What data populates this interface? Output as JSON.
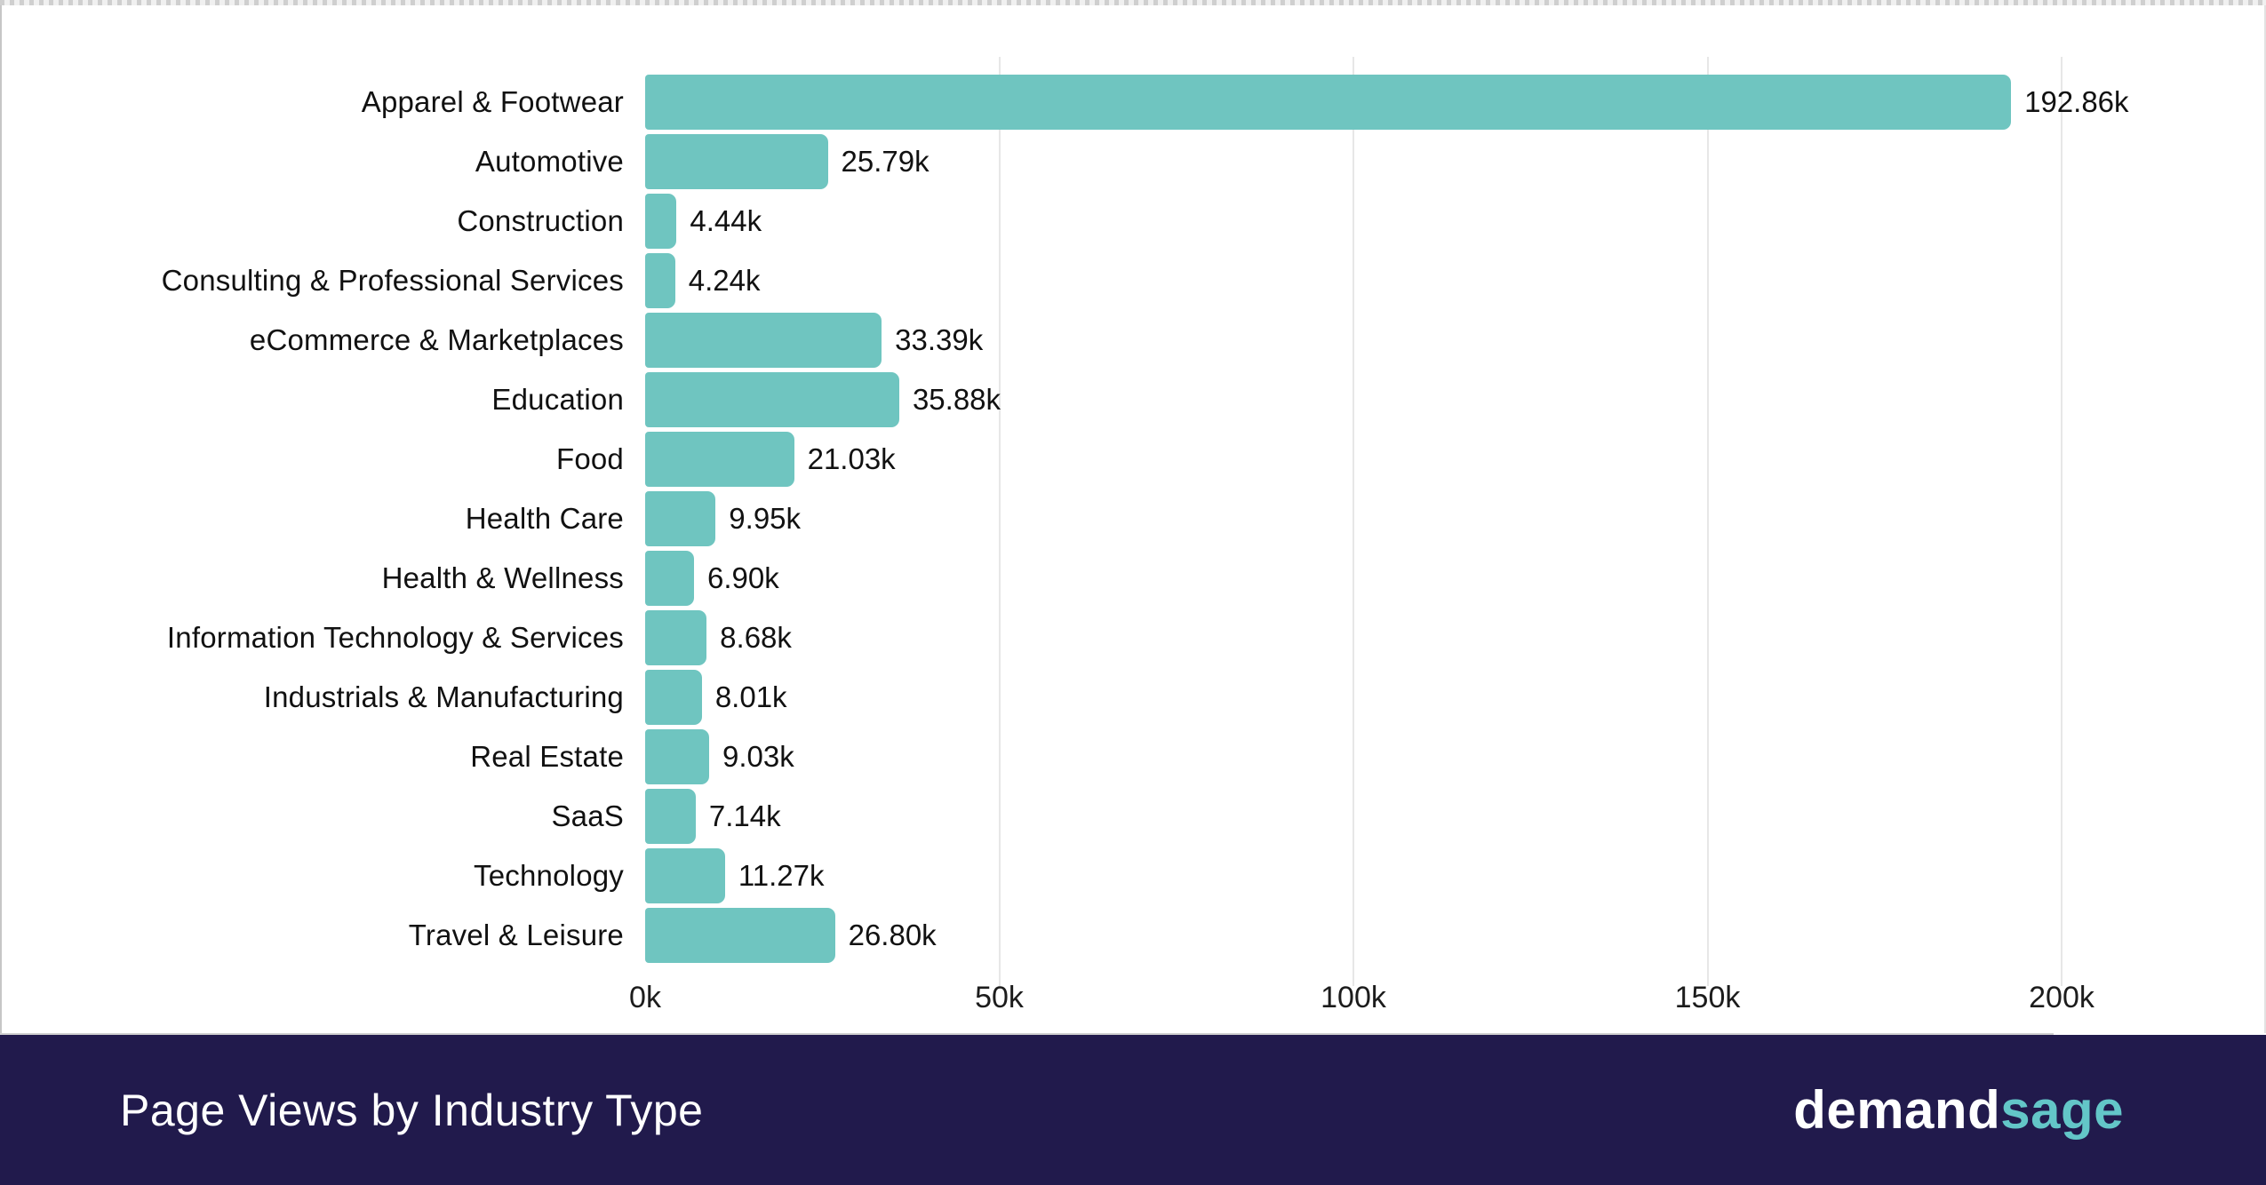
{
  "chart_data": {
    "type": "bar",
    "orientation": "horizontal",
    "title": "Page Views by Industry Type",
    "xlabel": "",
    "ylabel": "",
    "xlim": [
      0,
      200
    ],
    "grid": true,
    "unit": "thousands of page views",
    "categories": [
      "Apparel & Footwear",
      "Automotive",
      "Construction",
      "Consulting & Professional Services",
      "eCommerce & Marketplaces",
      "Education",
      "Food",
      "Health Care",
      "Health & Wellness",
      "Information Technology & Services",
      "Industrials & Manufacturing",
      "Real Estate",
      "SaaS",
      "Technology",
      "Travel & Leisure"
    ],
    "values": [
      192.86,
      25.79,
      4.44,
      4.24,
      33.39,
      35.88,
      21.03,
      9.95,
      6.9,
      8.68,
      8.01,
      9.03,
      7.14,
      11.27,
      26.8
    ],
    "value_labels": [
      "192.86k",
      "25.79k",
      "4.44k",
      "4.24k",
      "33.39k",
      "35.88k",
      "21.03k",
      "9.95k",
      "6.90k",
      "8.68k",
      "8.01k",
      "9.03k",
      "7.14k",
      "11.27k",
      "26.80k"
    ],
    "x_ticks": [
      {
        "value": 0,
        "label": "0k"
      },
      {
        "value": 50,
        "label": "50k"
      },
      {
        "value": 100,
        "label": "100k"
      },
      {
        "value": 150,
        "label": "150k"
      },
      {
        "value": 200,
        "label": "200k"
      }
    ],
    "bar_color": "#6fc5c0",
    "gridline_color": "#e7e7e7",
    "label_color": "#111111"
  },
  "footer": {
    "title": "Page Views by Industry Type",
    "background_color": "#211a4c",
    "logo": {
      "part1": "demand",
      "part2": "sage",
      "part1_color": "#ffffff",
      "part2_color": "#63c6c8"
    }
  }
}
